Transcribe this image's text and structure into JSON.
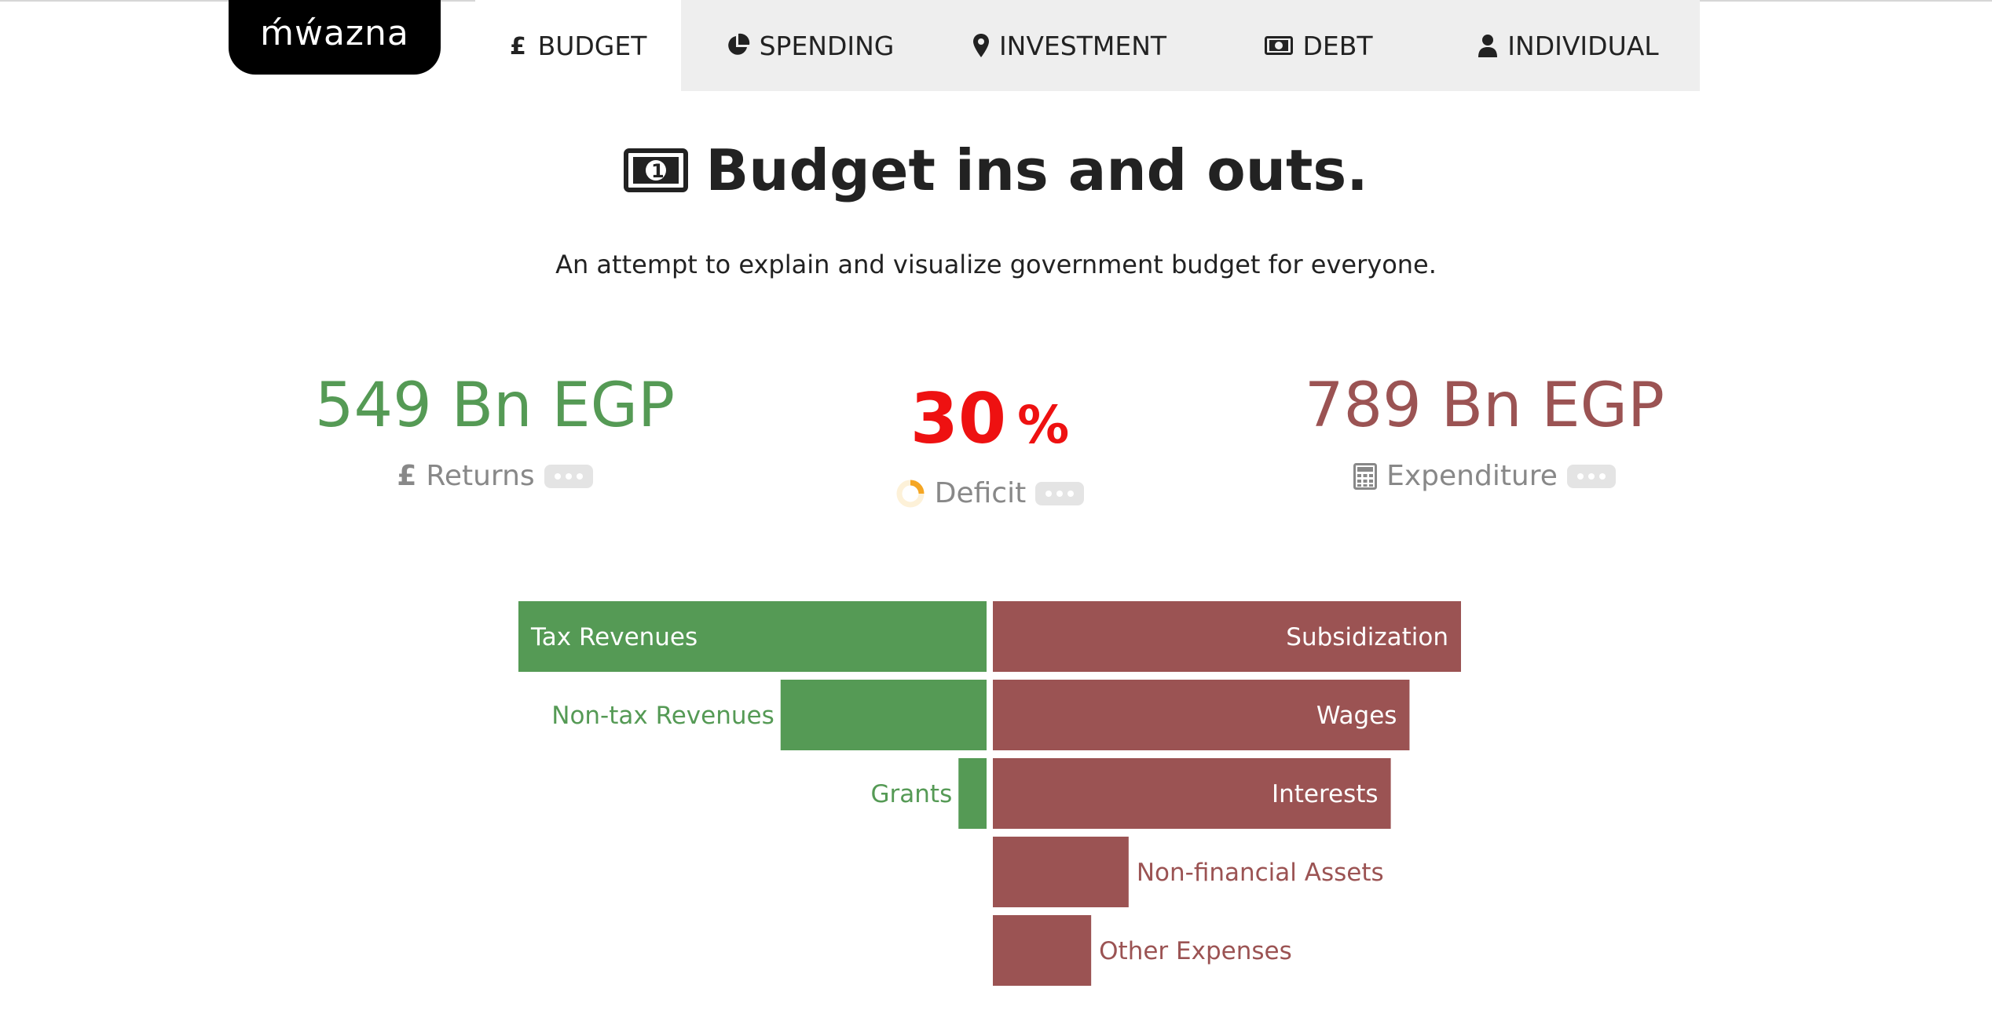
{
  "logo": "ḿẃazna",
  "nav": {
    "tabs": [
      {
        "label": "BUDGET",
        "icon": "pound-icon",
        "active": true
      },
      {
        "label": "SPENDING",
        "icon": "pie-chart-icon",
        "active": false
      },
      {
        "label": "INVESTMENT",
        "icon": "map-marker-icon",
        "active": false
      },
      {
        "label": "DEBT",
        "icon": "money-bill-icon",
        "active": false
      },
      {
        "label": "INDIVIDUAL",
        "icon": "user-icon",
        "active": false
      }
    ]
  },
  "header": {
    "title": "Budget ins and outs.",
    "title_icon": "money-bill-icon",
    "subtitle": "An attempt to explain and visualize government budget for everyone."
  },
  "stats": {
    "returns": {
      "value": "549 Bn EGP",
      "label": "Returns",
      "icon": "pound-icon",
      "color": "#559a55"
    },
    "deficit": {
      "value": "30",
      "unit": "%",
      "label": "Deficit",
      "icon": "donut-icon",
      "color": "#ee1111"
    },
    "expenditure": {
      "value": "789 Bn EGP",
      "label": "Expenditure",
      "icon": "calculator-icon",
      "color": "#9b5353"
    }
  },
  "chart_data": {
    "type": "bar",
    "orientation": "horizontal-diverging",
    "series": [
      {
        "name": "Returns",
        "color": "#559a55",
        "direction": "left",
        "categories": [
          "Tax Revenues",
          "Non-tax Revenues",
          "Grants"
        ],
        "values": [
          100,
          44,
          6
        ]
      },
      {
        "name": "Expenditure",
        "color": "#9b5353",
        "direction": "right",
        "categories": [
          "Subsidization",
          "Wages",
          "Interests",
          "Non-financial Assets",
          "Other Expenses"
        ],
        "values": [
          100,
          89,
          85,
          29,
          21
        ]
      }
    ]
  }
}
